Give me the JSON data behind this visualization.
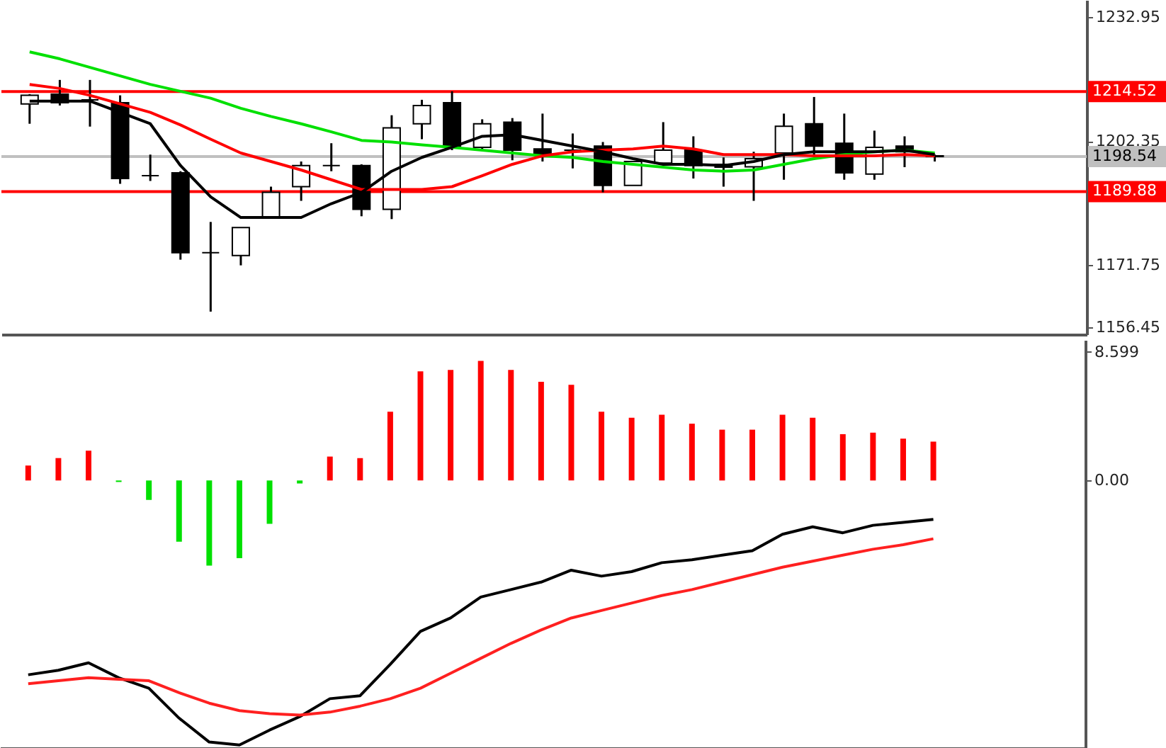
{
  "chart_data": [
    {
      "type": "candlestick",
      "categories": [
        null,
        null,
        null,
        null,
        null,
        null,
        null,
        null,
        null,
        null,
        null,
        null,
        null,
        null,
        null,
        null,
        null,
        null,
        null,
        null,
        null,
        null,
        null,
        null,
        null,
        null,
        null,
        null,
        null,
        null,
        null
      ],
      "ohlc": [
        [
          1211.5,
          1213.9,
          1206.6,
          1213.6
        ],
        [
          1213.9,
          1217.4,
          1211.1,
          1211.8
        ],
        [
          1212.5,
          1217.4,
          1205.9,
          1212.5
        ],
        [
          1211.8,
          1213.6,
          1191.8,
          1193.1
        ],
        [
          1193.8,
          1199.0,
          1192.5,
          1193.8
        ],
        [
          1194.5,
          1194.9,
          1173.1,
          1174.8
        ],
        [
          1174.8,
          1182.4,
          1160.3,
          1174.8
        ],
        [
          1174.1,
          1181.0,
          1171.7,
          1181.0
        ],
        [
          1183.5,
          1191.1,
          1183.5,
          1189.7
        ],
        [
          1191.1,
          1197.3,
          1187.6,
          1196.3
        ],
        [
          1196.3,
          1201.8,
          1194.9,
          1196.3
        ],
        [
          1196.3,
          1196.6,
          1183.8,
          1185.5
        ],
        [
          1185.5,
          1208.7,
          1183.1,
          1205.6
        ],
        [
          1206.6,
          1212.5,
          1202.8,
          1211.1
        ],
        [
          1211.8,
          1214.6,
          1200.1,
          1201.1
        ],
        [
          1200.8,
          1207.7,
          1200.4,
          1206.6
        ],
        [
          1207.0,
          1208.0,
          1197.6,
          1200.1
        ],
        [
          1200.4,
          1209.1,
          1197.3,
          1199.0
        ],
        [
          1200.1,
          1204.2,
          1195.6,
          1200.1
        ],
        [
          1201.1,
          1202.1,
          1189.7,
          1191.4
        ],
        [
          1191.4,
          1197.3,
          1191.4,
          1197.3
        ],
        [
          1196.9,
          1207.0,
          1196.6,
          1200.1
        ],
        [
          1200.1,
          1203.5,
          1193.1,
          1196.3
        ],
        [
          1196.6,
          1198.3,
          1191.1,
          1195.9
        ],
        [
          1196.0,
          1199.7,
          1187.6,
          1198.0
        ],
        [
          1199.4,
          1209.1,
          1192.8,
          1206.0
        ],
        [
          1206.6,
          1213.2,
          1199.0,
          1201.1
        ],
        [
          1201.8,
          1209.1,
          1192.8,
          1194.5
        ],
        [
          1194.2,
          1204.9,
          1192.8,
          1200.8
        ],
        [
          1201.1,
          1203.5,
          1195.9,
          1199.7
        ],
        [
          1198.7,
          1199.0,
          1197.3,
          1198.54
        ]
      ],
      "series": [
        {
          "type": "line",
          "color": "#00e000",
          "values": [
            1224.3,
            1222.6,
            1220.5,
            1218.4,
            1216.3,
            1214.6,
            1212.9,
            1210.4,
            1208.4,
            1206.6,
            1204.6,
            1202.5,
            1202.1,
            1201.4,
            1200.8,
            1200.1,
            1199.4,
            1198.7,
            1198.3,
            1197.3,
            1196.6,
            1195.9,
            1195.2,
            1194.9,
            1195.2,
            1196.6,
            1198.0,
            1199.0,
            1199.7,
            1200.1,
            1199.4
          ]
        },
        {
          "type": "line",
          "color": "#ff0000",
          "values": [
            1216.3,
            1215.3,
            1213.6,
            1211.5,
            1209.4,
            1206.3,
            1202.8,
            1199.4,
            1197.3,
            1195.2,
            1192.8,
            1190.4,
            1190.4,
            1190.4,
            1191.1,
            1193.8,
            1196.6,
            1198.7,
            1199.7,
            1200.1,
            1200.4,
            1201.1,
            1200.4,
            1199.0,
            1199.0,
            1199.0,
            1198.7,
            1198.7,
            1198.7,
            1199.0,
            1198.7
          ]
        },
        {
          "type": "line",
          "color": "#000000",
          "values": [
            1212.2,
            1212.2,
            1212.2,
            1209.4,
            1206.6,
            1196.3,
            1188.6,
            1183.5,
            1183.5,
            1183.5,
            1186.9,
            1189.7,
            1194.9,
            1198.3,
            1200.8,
            1203.5,
            1203.9,
            1202.5,
            1201.1,
            1199.7,
            1198.0,
            1196.6,
            1196.6,
            1196.3,
            1197.3,
            1199.0,
            1199.7,
            1199.7,
            1199.7,
            1200.1,
            1199.0
          ]
        }
      ],
      "ylim": [
        1154.7,
        1237.1
      ],
      "yticks": [
        1156.45,
        1171.75,
        1202.35,
        1232.95
      ],
      "ref_lines": [
        {
          "axis": "y",
          "value": 1214.52,
          "label": "1214.52",
          "color": "#ff0000"
        },
        {
          "axis": "y",
          "value": 1189.88,
          "label": "1189.88",
          "color": "#ff0000"
        },
        {
          "axis": "y",
          "value": 1198.54,
          "label": "1198.54",
          "color": "#c0c0c0"
        }
      ],
      "tick_labels": "y"
    },
    {
      "type": "bar",
      "categories": [
        null,
        null,
        null,
        null,
        null,
        null,
        null,
        null,
        null,
        null,
        null,
        null,
        null,
        null,
        null,
        null,
        null,
        null,
        null,
        null,
        null,
        null,
        null,
        null,
        null,
        null,
        null,
        null,
        null,
        null,
        null
      ],
      "values": [
        1.0,
        1.5,
        2.0,
        -0.1,
        -1.3,
        -4.1,
        -5.7,
        -5.2,
        -2.9,
        -0.2,
        1.6,
        1.5,
        4.6,
        7.3,
        7.4,
        8.0,
        7.4,
        6.6,
        6.4,
        4.6,
        4.2,
        4.4,
        3.8,
        3.4,
        3.4,
        4.4,
        4.2,
        3.1,
        3.2,
        2.8,
        2.6
      ],
      "colors": [
        "#ff0000",
        "#ff0000",
        "#ff0000",
        "#00e000",
        "#00e000",
        "#00e000",
        "#00e000",
        "#00e000",
        "#00e000",
        "#00e000",
        "#ff0000",
        "#ff0000",
        "#ff0000",
        "#ff0000",
        "#ff0000",
        "#ff0000",
        "#ff0000",
        "#ff0000",
        "#ff0000",
        "#ff0000",
        "#ff0000",
        "#ff0000",
        "#ff0000",
        "#ff0000",
        "#ff0000",
        "#ff0000",
        "#ff0000",
        "#ff0000",
        "#ff0000",
        "#ff0000",
        "#ff0000"
      ],
      "series": [
        {
          "type": "line",
          "color": "#000000",
          "values": [
            -13.0,
            -12.7,
            -12.2,
            -13.2,
            -13.9,
            -15.9,
            -17.5,
            -17.7,
            -16.7,
            -15.8,
            -14.6,
            -14.4,
            -12.3,
            -10.1,
            -9.2,
            -7.8,
            -7.3,
            -6.8,
            -6.0,
            -6.4,
            -6.1,
            -5.5,
            -5.3,
            -5.0,
            -4.7,
            -3.6,
            -3.1,
            -3.5,
            -3.0,
            -2.8,
            -2.6
          ]
        },
        {
          "type": "line",
          "color": "#ff2020",
          "values": [
            -13.6,
            -13.4,
            -13.2,
            -13.3,
            -13.4,
            -14.2,
            -14.9,
            -15.4,
            -15.6,
            -15.7,
            -15.5,
            -15.1,
            -14.6,
            -13.9,
            -12.9,
            -11.9,
            -10.9,
            -10.0,
            -9.2,
            -8.7,
            -8.2,
            -7.7,
            -7.3,
            -6.8,
            -6.3,
            -5.8,
            -5.4,
            -5.0,
            -4.6,
            -4.3,
            -3.9
          ]
        }
      ],
      "ylim": [
        -17.9,
        9.4
      ],
      "yticks": [
        8.599,
        {
          "value": 0,
          "label": "0.00"
        }
      ],
      "tick_labels": "y"
    }
  ]
}
